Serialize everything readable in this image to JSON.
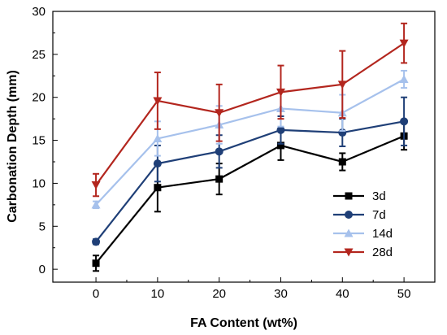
{
  "chart_data": {
    "type": "line",
    "xlabel": "FA Content (wt%)",
    "ylabel": "Carbonation Depth (mm)",
    "x": [
      0,
      10,
      20,
      30,
      40,
      50
    ],
    "xlim": [
      -7,
      55
    ],
    "ylim": [
      -1.5,
      30
    ],
    "x_ticks": [
      0,
      10,
      20,
      30,
      40,
      50
    ],
    "y_ticks": [
      0,
      5,
      10,
      15,
      20,
      25,
      30
    ],
    "grid": false,
    "legend_position": "center-right",
    "series": [
      {
        "name": "3d",
        "color": "#000000",
        "marker": "square",
        "values": [
          0.7,
          9.5,
          10.5,
          14.4,
          12.5,
          15.5
        ],
        "errors": [
          0.9,
          2.8,
          1.8,
          1.7,
          1.0,
          1.6
        ]
      },
      {
        "name": "7d",
        "color": "#1f3f77",
        "marker": "circle",
        "values": [
          3.2,
          12.3,
          13.7,
          16.2,
          15.9,
          17.2
        ],
        "errors": [
          0.3,
          2.1,
          1.9,
          1.6,
          1.6,
          2.8
        ]
      },
      {
        "name": "14d",
        "color": "#a6c1ec",
        "marker": "triangle-up",
        "values": [
          7.5,
          15.2,
          16.8,
          18.7,
          18.2,
          22.1
        ],
        "errors": [
          0.4,
          2.0,
          2.2,
          2.1,
          2.1,
          1.0
        ]
      },
      {
        "name": "28d",
        "color": "#b3261e",
        "marker": "triangle-down",
        "values": [
          9.8,
          19.6,
          18.2,
          20.6,
          21.5,
          26.3
        ],
        "errors": [
          1.3,
          3.3,
          3.3,
          3.1,
          3.9,
          2.3
        ]
      }
    ]
  }
}
